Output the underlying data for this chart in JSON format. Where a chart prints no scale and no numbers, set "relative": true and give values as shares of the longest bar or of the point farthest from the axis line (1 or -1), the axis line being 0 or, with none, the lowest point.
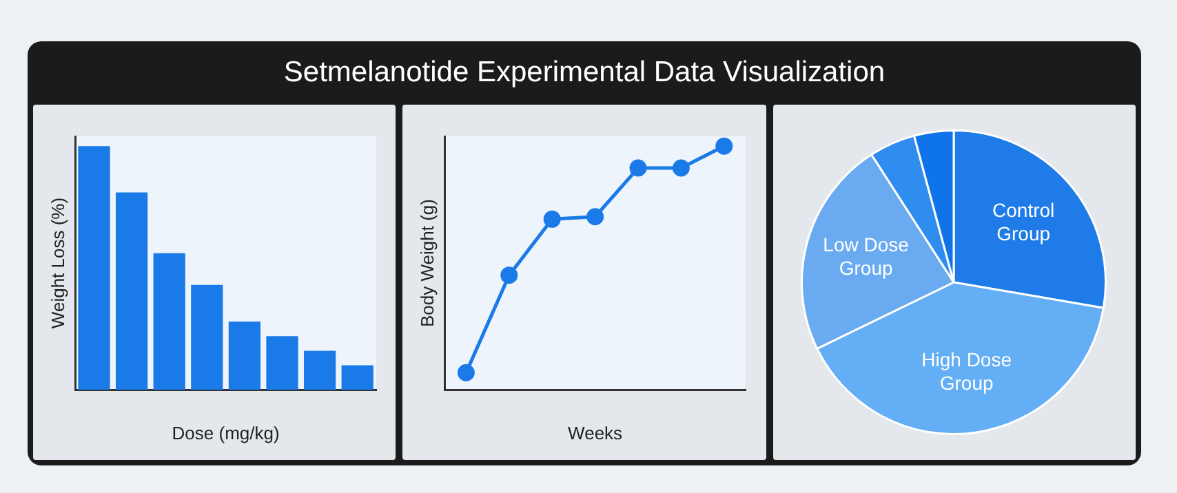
{
  "chart_data": [
    {
      "type": "bar",
      "title": "Setmelanotide Experimental Data Visualization",
      "xlabel": "Dose (mg/kg)",
      "ylabel": "Weight Loss (%)",
      "relative": true,
      "categories": [
        null,
        null,
        null,
        null,
        null,
        null,
        null,
        null
      ],
      "values": [
        1,
        0.81,
        0.56,
        0.43,
        0.28,
        0.22,
        0.16,
        0.1
      ],
      "color": "#1a7ae8",
      "grid": false,
      "legend": false
    },
    {
      "type": "line",
      "xlabel": "Weeks",
      "ylabel": "Body Weight (g)",
      "relative": true,
      "categories": [
        null,
        null,
        null,
        null,
        null,
        null,
        null
      ],
      "values": [
        0.07,
        0.47,
        0.7,
        0.71,
        0.91,
        0.91,
        1
      ],
      "color": "#1a7ae8",
      "marker": "circle",
      "grid": false,
      "legend": false
    },
    {
      "type": "pie",
      "categories": [
        "Control Group",
        "High Dose Group",
        "Low Dose Group",
        null,
        null
      ],
      "values": [
        27.7,
        40.1,
        23.1,
        4.9,
        4.2
      ],
      "colors": [
        "#1e7be8",
        "#64aef5",
        "#6aaaf0",
        "#2f8df0",
        "#0f74ea"
      ],
      "legend": false
    }
  ]
}
